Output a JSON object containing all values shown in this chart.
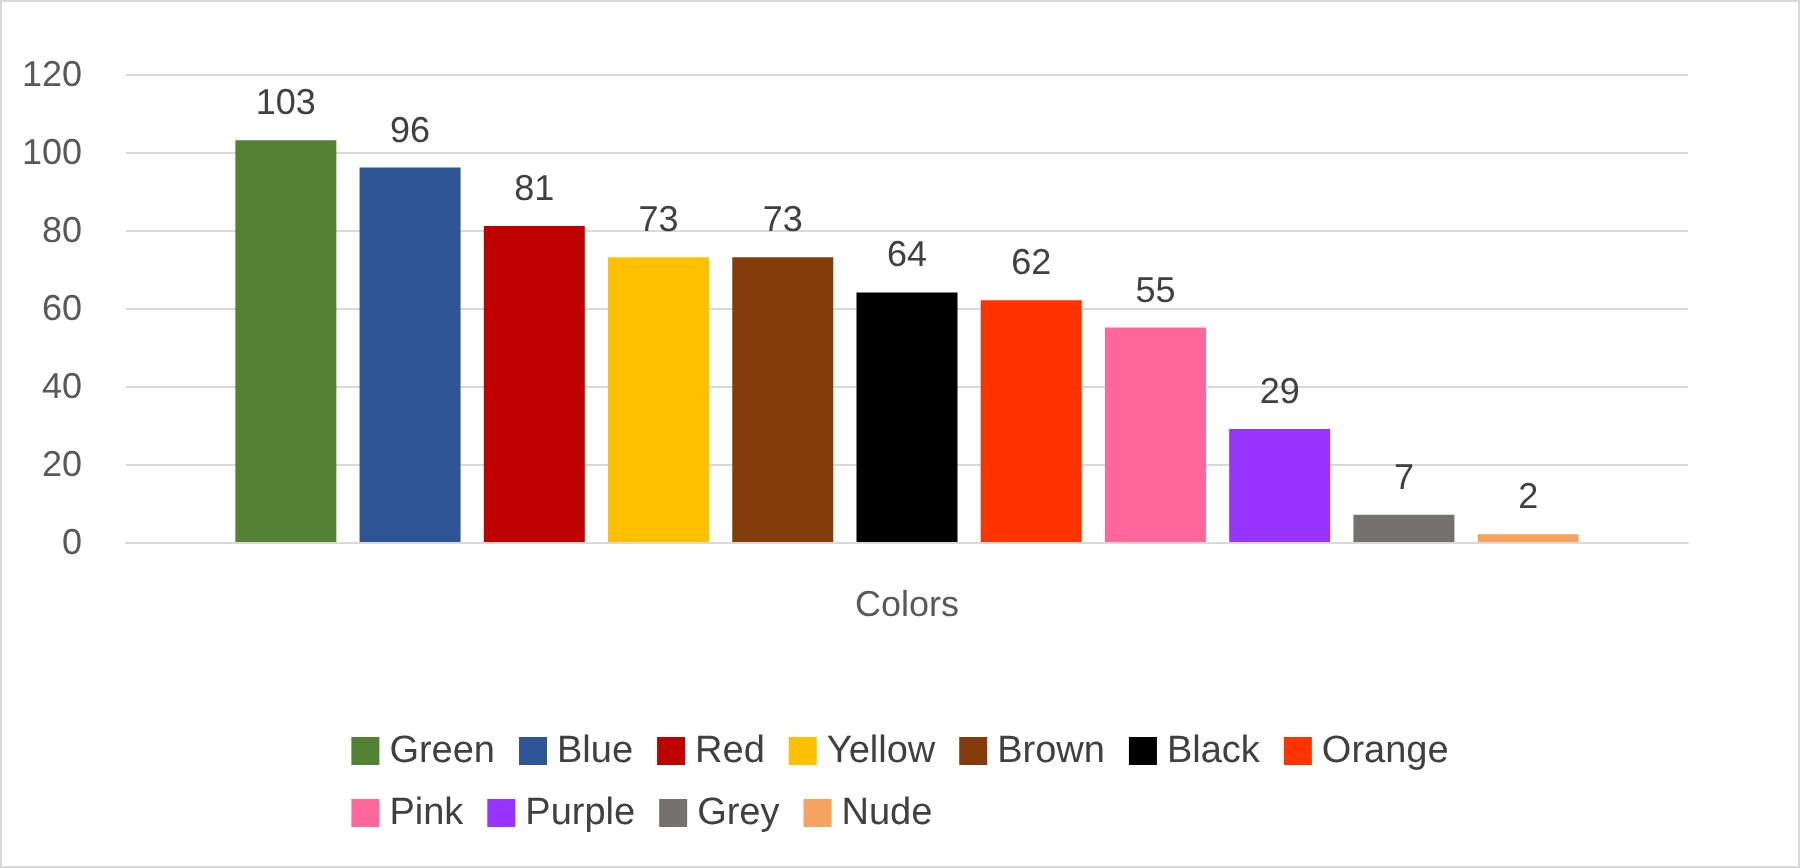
{
  "chart_data": {
    "type": "bar",
    "categories": [
      "Colors"
    ],
    "series": [
      {
        "name": "Green",
        "color": "#548235",
        "values": [
          103
        ]
      },
      {
        "name": "Blue",
        "color": "#2f5597",
        "values": [
          96
        ]
      },
      {
        "name": "Red",
        "color": "#c00000",
        "values": [
          81
        ]
      },
      {
        "name": "Yellow",
        "color": "#ffc000",
        "values": [
          73
        ]
      },
      {
        "name": "Brown",
        "color": "#843c0c",
        "values": [
          73
        ]
      },
      {
        "name": "Black",
        "color": "#000000",
        "values": [
          64
        ]
      },
      {
        "name": "Orange",
        "color": "#ff3300",
        "values": [
          62
        ]
      },
      {
        "name": "Pink",
        "color": "#ff6699",
        "values": [
          55
        ]
      },
      {
        "name": "Purple",
        "color": "#9933ff",
        "values": [
          29
        ]
      },
      {
        "name": "Grey",
        "color": "#767171",
        "values": [
          7
        ]
      },
      {
        "name": "Nude",
        "color": "#f4a460",
        "values": [
          2
        ]
      }
    ],
    "ylim": [
      0,
      120
    ],
    "yticks": [
      0,
      20,
      40,
      60,
      80,
      100,
      120
    ],
    "grid": "y",
    "legend": "bottom",
    "data_labels": true
  }
}
